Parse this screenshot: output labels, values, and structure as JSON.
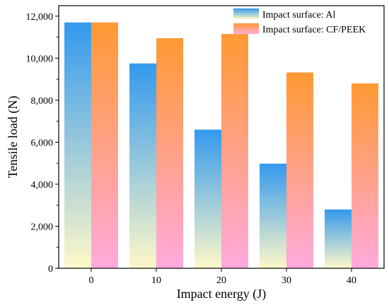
{
  "chart_data": {
    "type": "bar",
    "title": "",
    "xlabel": "Impact energy (J)",
    "ylabel": "Tensile load (N)",
    "categories": [
      "0",
      "10",
      "20",
      "30",
      "40"
    ],
    "ylim": [
      0,
      12500
    ],
    "yticks": [
      0,
      2000,
      4000,
      6000,
      8000,
      10000,
      12000
    ],
    "ytick_labels": [
      "0",
      "2,000",
      "4,000",
      "6,000",
      "8,000",
      "10,000",
      "12,000"
    ],
    "grid": false,
    "legend": "top-right",
    "series": [
      {
        "name": "Impact surface: Al",
        "values": [
          11700,
          9750,
          6600,
          4980,
          2800
        ],
        "gradient": [
          "#3399ee",
          "#fff8c8"
        ]
      },
      {
        "name": "Impact surface: CF/PEEK",
        "values": [
          11700,
          10950,
          11150,
          9320,
          8800
        ],
        "gradient": [
          "#ff9933",
          "#ffaadd"
        ]
      }
    ]
  }
}
